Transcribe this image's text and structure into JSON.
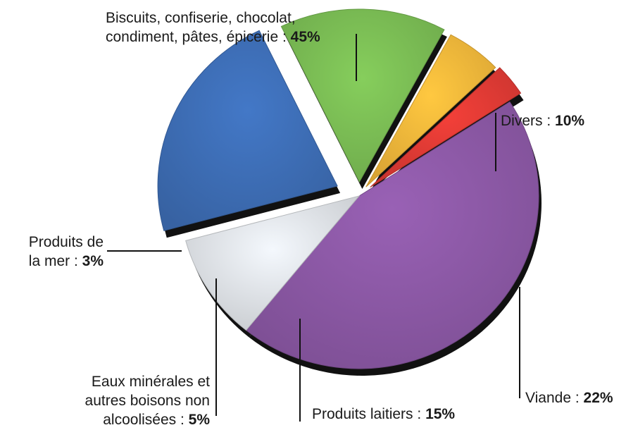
{
  "chart_data": {
    "type": "pie",
    "style": "3d-exploded",
    "slices": [
      {
        "label": "Biscuits, confiserie, chocolat,\ncondiment, pâtes, épicerie",
        "label_lines": [
          "Biscuits, confiserie, chocolat,",
          "condiment, pâtes, épicerie :"
        ],
        "value": 45,
        "value_label": "45%",
        "color": "#8e5aa8"
      },
      {
        "label": "Divers",
        "label_lines": [
          "Divers :"
        ],
        "value": 10,
        "value_label": "10%",
        "color": "#e2e6ea"
      },
      {
        "label": "Viande",
        "label_lines": [
          "Viande :"
        ],
        "value": 22,
        "value_label": "22%",
        "color": "#3e6fb8"
      },
      {
        "label": "Produits laitiers",
        "label_lines": [
          "Produits laitiers :"
        ],
        "value": 15,
        "value_label": "15%",
        "color": "#7cbf55"
      },
      {
        "label": "Eaux minérales et autres boisons non alcoolisées",
        "label_lines": [
          "Eaux minérales et",
          "autres boisons non",
          "alcoolisées :"
        ],
        "value": 5,
        "value_label": "5%",
        "color": "#f6b93b"
      },
      {
        "label": "Produits de la mer",
        "label_lines": [
          "Produits de",
          "la mer :"
        ],
        "value": 3,
        "value_label": "3%",
        "color": "#e23b35"
      }
    ]
  }
}
